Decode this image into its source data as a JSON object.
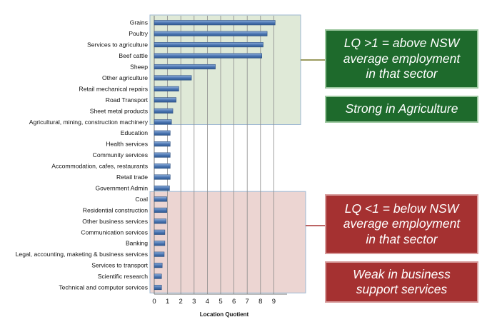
{
  "chart_data": {
    "type": "bar",
    "orientation": "horizontal",
    "categories": [
      "Grains",
      "Poultry",
      "Services to agriculture",
      "Beef cattle",
      "Sheep",
      "Other agriculture",
      "Retail mechanical repairs",
      "Road Transport",
      "Sheet metal products",
      "Agricultural, mining, construction machinery",
      "Education",
      "Health services",
      "Community services",
      "Accommodation, cafes, restaurants",
      "Retail trade",
      "Government Admin",
      "Coal",
      "Residential construction",
      "Other business services",
      "Communication services",
      "Banking",
      "Legal, accounting, maketing & business services",
      "Services to transport",
      "Scientific research",
      "Technical and computer services"
    ],
    "values": [
      9.1,
      8.5,
      8.2,
      8.1,
      4.6,
      2.8,
      1.85,
      1.65,
      1.4,
      1.3,
      1.2,
      1.2,
      1.2,
      1.2,
      1.2,
      1.15,
      0.95,
      0.95,
      0.9,
      0.8,
      0.8,
      0.75,
      0.6,
      0.55,
      0.55
    ],
    "xlabel": "Location Quotient",
    "xlim": [
      0,
      10
    ],
    "xticks": [
      "0",
      "1",
      "2",
      "3",
      "4",
      "5",
      "6",
      "7",
      "8",
      "9"
    ],
    "grid": true,
    "bar_color": "#4a74b0",
    "highlight_regions": [
      {
        "from_category": "Grains",
        "to_category": "Agricultural, mining, construction machinery",
        "color": "#dfe9d7"
      },
      {
        "from_category": "Coal",
        "to_category": "Technical and computer services",
        "color": "#ecd5d2"
      }
    ]
  },
  "callouts": {
    "above": {
      "lines": [
        "LQ >1 = above NSW",
        "average employment",
        "in that sector"
      ],
      "color": "#1e6a2c"
    },
    "strong": {
      "lines": [
        "Strong in Agriculture"
      ],
      "color": "#1e6a2c"
    },
    "below": {
      "lines": [
        "LQ <1 = below NSW",
        "average employment",
        "in that sector"
      ],
      "color": "#a53131"
    },
    "weak": {
      "lines": [
        "Weak in business",
        "support services"
      ],
      "color": "#a53131"
    }
  }
}
